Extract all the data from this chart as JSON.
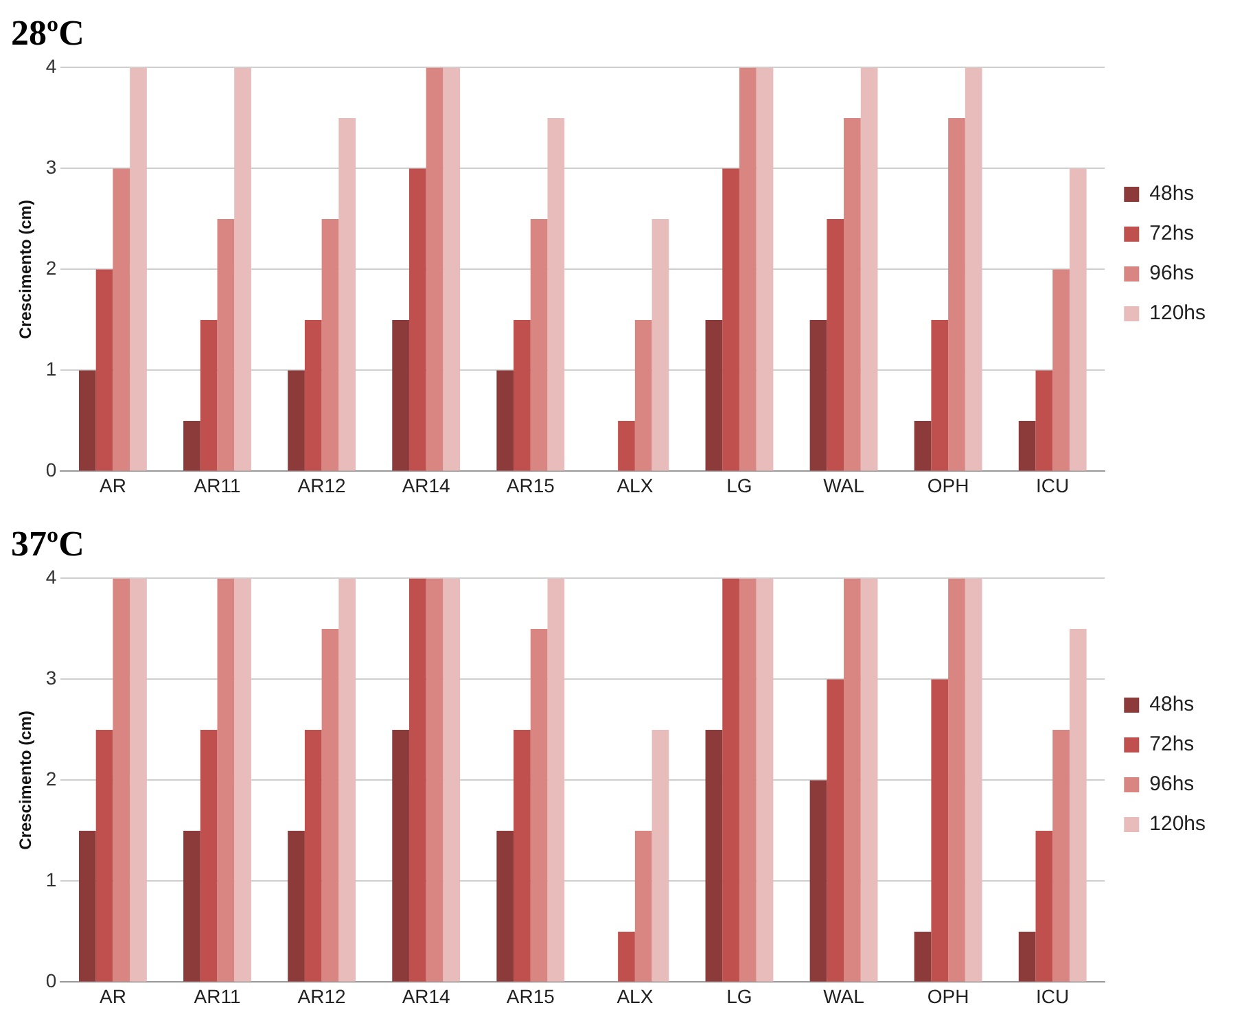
{
  "chart_data": [
    {
      "type": "bar",
      "title": "28ºC",
      "ylabel": "Crescimento (cm)",
      "categories": [
        "AR",
        "AR11",
        "AR12",
        "AR14",
        "AR15",
        "ALX",
        "LG",
        "WAL",
        "OPH",
        "ICU"
      ],
      "series": [
        {
          "name": "48hs",
          "color": "#8c3b3a",
          "values": [
            1,
            0.5,
            1,
            1.5,
            1,
            0,
            1.5,
            1.5,
            0.5,
            0.5
          ]
        },
        {
          "name": "72hs",
          "color": "#c0504d",
          "values": [
            2,
            1.5,
            1.5,
            3,
            1.5,
            0.5,
            3,
            2.5,
            1.5,
            1
          ]
        },
        {
          "name": "96hs",
          "color": "#d98683",
          "values": [
            3,
            2.5,
            2.5,
            4,
            2.5,
            1.5,
            4,
            3.5,
            3.5,
            2
          ]
        },
        {
          "name": "120hs",
          "color": "#e8bcbb",
          "values": [
            4,
            4,
            3.5,
            4,
            3.5,
            2.5,
            4,
            4,
            4,
            3
          ]
        }
      ],
      "ylim": [
        0,
        4
      ],
      "yticks": [
        0,
        1,
        2,
        3,
        4
      ],
      "grid": "y",
      "legend": "right"
    },
    {
      "type": "bar",
      "title": "37ºC",
      "ylabel": "Crescimento (cm)",
      "categories": [
        "AR",
        "AR11",
        "AR12",
        "AR14",
        "AR15",
        "ALX",
        "LG",
        "WAL",
        "OPH",
        "ICU"
      ],
      "series": [
        {
          "name": "48hs",
          "color": "#8c3b3a",
          "values": [
            1.5,
            1.5,
            1.5,
            2.5,
            1.5,
            0,
            2.5,
            2,
            0.5,
            0.5
          ]
        },
        {
          "name": "72hs",
          "color": "#c0504d",
          "values": [
            2.5,
            2.5,
            2.5,
            4,
            2.5,
            0.5,
            4,
            3,
            3,
            1.5
          ]
        },
        {
          "name": "96hs",
          "color": "#d98683",
          "values": [
            4,
            4,
            3.5,
            4,
            3.5,
            1.5,
            4,
            4,
            4,
            2.5
          ]
        },
        {
          "name": "120hs",
          "color": "#e8bcbb",
          "values": [
            4,
            4,
            4,
            4,
            4,
            2.5,
            4,
            4,
            4,
            3.5
          ]
        }
      ],
      "ylim": [
        0,
        4
      ],
      "yticks": [
        0,
        1,
        2,
        3,
        4
      ],
      "grid": "y",
      "legend": "right"
    }
  ]
}
